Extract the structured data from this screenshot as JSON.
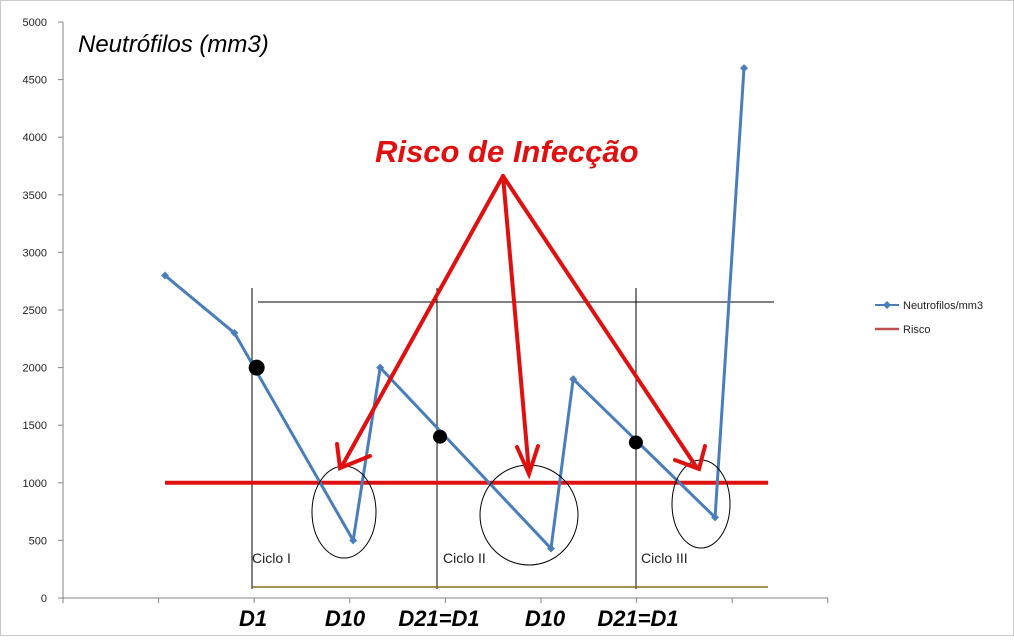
{
  "chart_data": {
    "type": "line",
    "title": "Neutrófilos (mm3)",
    "annotation_title": "Risco de Infecção",
    "ylim": [
      0,
      5000
    ],
    "y_ticks": [
      "0",
      "500",
      "1000",
      "1500",
      "2000",
      "2500",
      "3000",
      "3500",
      "4000",
      "4500",
      "5000"
    ],
    "x_labels": [
      "D1",
      "D10",
      "D21=D1",
      "D10",
      "D21=D1"
    ],
    "cycle_labels": [
      "Ciclo I",
      "Ciclo II",
      "Ciclo III"
    ],
    "legend_position": "right",
    "legend": [
      "Neutrofilos/mm3",
      "Risco"
    ],
    "series": [
      {
        "name": "Neutrofilos/mm3",
        "color": "#4a7ebb",
        "points": [
          {
            "x": 0.0,
            "y": 2800
          },
          {
            "x": 0.72,
            "y": 2300
          },
          {
            "x": 1.95,
            "y": 500
          },
          {
            "x": 2.23,
            "y": 2000
          },
          {
            "x": 4.0,
            "y": 430
          },
          {
            "x": 4.23,
            "y": 1900
          },
          {
            "x": 5.7,
            "y": 700
          },
          {
            "x": 6.0,
            "y": 4600
          }
        ]
      },
      {
        "name": "Risco",
        "color": "#e01010",
        "points": [
          {
            "x": 0.0,
            "y": 1000
          },
          {
            "x": 6.25,
            "y": 1000
          }
        ]
      }
    ],
    "key_points": [
      {
        "x": 0.95,
        "y": 2000
      },
      {
        "x": 2.85,
        "y": 1400
      },
      {
        "x": 4.88,
        "y": 1350
      }
    ],
    "colors": {
      "series": "#4a7ebb",
      "risk_line": "#e01010",
      "legend_risk": "#c0504d",
      "annotation": "#e01010",
      "axis": "#868686"
    }
  }
}
